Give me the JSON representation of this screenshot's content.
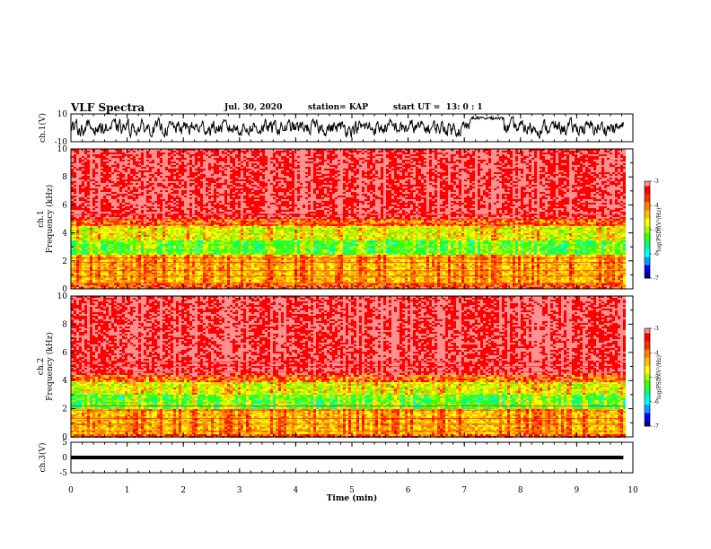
{
  "header": {
    "title": "VLF Spectra",
    "date": "Jul. 30, 2020",
    "station": "station= KAP",
    "start": "start UT =  13: 0 : 1"
  },
  "chart_data": [
    {
      "type": "line",
      "panel": "ch1-waveform",
      "ylabel": "ch.1(V)",
      "ylim": [
        -10,
        10
      ],
      "yticks": [
        "10",
        "-10"
      ],
      "xlim": [
        0,
        10
      ],
      "trace_summary": {
        "baseline": 0,
        "typical_amplitude": 5,
        "quiet_interval_min": [
          7.1,
          7.7
        ],
        "quiet_level": 7,
        "end_min": 9.83
      }
    },
    {
      "type": "heatmap",
      "panel": "ch1-spectrogram",
      "ylabel": "ch.1\nFrequency (kHz)",
      "xlim": [
        0,
        9.83
      ],
      "ylim": [
        0,
        10
      ],
      "yticks": [
        "0",
        "2",
        "4",
        "6",
        "8",
        "10"
      ],
      "colorbar": {
        "label": "log(PSD)(V²/Hz)",
        "range": [
          -7,
          -3
        ],
        "ticks": [
          "-3",
          "-4",
          "-5",
          "-6",
          "-7"
        ]
      },
      "bands_khz": {
        "red_above": 5.0,
        "green_band": [
          3.0,
          4.5
        ],
        "cyan_band": [
          2.5,
          3.5
        ],
        "yellow_band": [
          0.5,
          2.5
        ]
      },
      "palette": [
        "#000080",
        "#0000ff",
        "#00a0ff",
        "#00ffff",
        "#00ff80",
        "#40ff00",
        "#a0ff00",
        "#ffff00",
        "#ffc000",
        "#ff8000",
        "#ff3000",
        "#ff0000",
        "#ff9090"
      ]
    },
    {
      "type": "heatmap",
      "panel": "ch2-spectrogram",
      "ylabel": "ch.2\nFrequency (kHz)",
      "xlim": [
        0,
        9.83
      ],
      "ylim": [
        0,
        10
      ],
      "yticks": [
        "0",
        "2",
        "4",
        "6",
        "8",
        "10"
      ],
      "colorbar": {
        "label": "log(PSD)(V²/Hz)",
        "range": [
          -7,
          -3
        ],
        "ticks": [
          "-3",
          "-4",
          "-5",
          "-6",
          "-7"
        ]
      },
      "bands_khz": {
        "red_above": 4.5,
        "green_band": [
          2.0,
          4.0
        ],
        "cyan_band": [
          2.0,
          3.0
        ],
        "yellow_band": [
          0.3,
          2.0
        ]
      },
      "palette": [
        "#000080",
        "#0000ff",
        "#00a0ff",
        "#00ffff",
        "#00ff80",
        "#40ff00",
        "#a0ff00",
        "#ffff00",
        "#ffc000",
        "#ff8000",
        "#ff3000",
        "#ff0000",
        "#ff9090"
      ]
    },
    {
      "type": "line",
      "panel": "ch3-waveform",
      "ylabel": "ch.3(V)",
      "ylim": [
        -5,
        5
      ],
      "yticks": [
        "5",
        "0",
        "-5"
      ],
      "xlim": [
        0,
        10
      ],
      "trace_summary": {
        "baseline": 0,
        "band_half_width": 0.6,
        "end_min": 9.83
      }
    }
  ],
  "xaxis": {
    "label": "Time (min)",
    "range": [
      0,
      10
    ],
    "ticks": [
      "0",
      "1",
      "2",
      "3",
      "4",
      "5",
      "6",
      "7",
      "8",
      "9",
      "10"
    ]
  }
}
